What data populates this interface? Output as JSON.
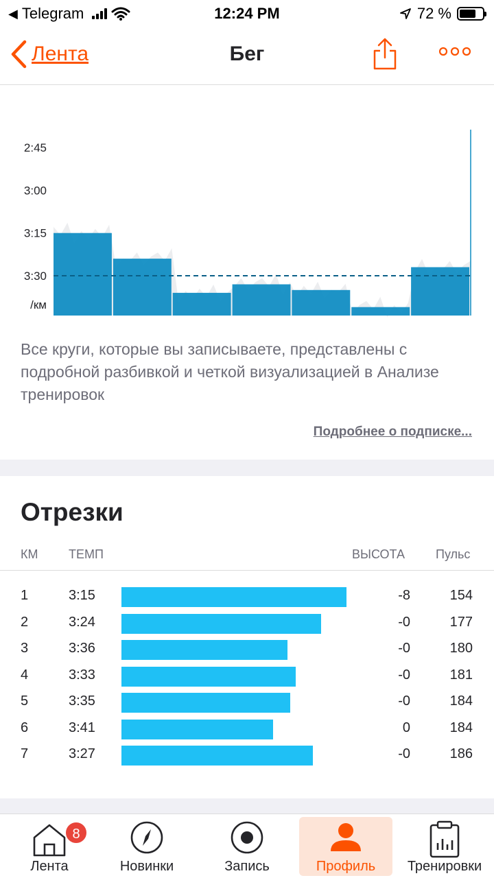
{
  "status_bar": {
    "back_app": "Telegram",
    "time": "12:24 PM",
    "battery": "72 %",
    "battery_level": 0.72
  },
  "nav": {
    "back_label": "Лента",
    "title": "Бег",
    "icons": [
      "chevron-left-icon",
      "share-icon",
      "more-dots-icon"
    ]
  },
  "chart_data": {
    "type": "bar",
    "y_axis_unit": "/км",
    "y_ticks": [
      "2:45",
      "3:00",
      "3:15",
      "3:30"
    ],
    "y_ticks_seconds": [
      165,
      180,
      195,
      210
    ],
    "inverted_axis": true,
    "categories": [
      "1",
      "2",
      "3",
      "4",
      "5",
      "6",
      "7"
    ],
    "values_seconds": [
      195,
      204,
      216,
      213,
      215,
      221,
      207
    ],
    "values": [
      "3:15",
      "3:24",
      "3:36",
      "3:33",
      "3:35",
      "3:41",
      "3:27"
    ],
    "avg_line_seconds": 210,
    "colors": {
      "bar": "#0b8bc2",
      "bar_shadow": "#0574a6",
      "avg_line": "#0a5f87"
    }
  },
  "promo": {
    "description": "Все круги, которые вы записываете, представлены с подробной разбивкой и четкой визуализацией в Анализе тренировок",
    "link": "Подробнее о подписке..."
  },
  "splits": {
    "title": "Отрезки",
    "headers": {
      "km": "КМ",
      "pace": "ТЕМП",
      "elev": "ВЫСОТА",
      "hr": "Пульс"
    },
    "rows": [
      {
        "km": "1",
        "pace": "3:15",
        "pace_sec": 195,
        "elev": "-8",
        "hr": "154"
      },
      {
        "km": "2",
        "pace": "3:24",
        "pace_sec": 204,
        "elev": "-0",
        "hr": "177"
      },
      {
        "km": "3",
        "pace": "3:36",
        "pace_sec": 216,
        "elev": "-0",
        "hr": "180"
      },
      {
        "km": "4",
        "pace": "3:33",
        "pace_sec": 213,
        "elev": "-0",
        "hr": "181"
      },
      {
        "km": "5",
        "pace": "3:35",
        "pace_sec": 215,
        "elev": "-0",
        "hr": "184"
      },
      {
        "km": "6",
        "pace": "3:41",
        "pace_sec": 221,
        "elev": "0",
        "hr": "184"
      },
      {
        "km": "7",
        "pace": "3:27",
        "pace_sec": 207,
        "elev": "-0",
        "hr": "186"
      }
    ],
    "bar_color": "#1fc0f5"
  },
  "tabs": [
    {
      "label": "Лента",
      "icon": "home-icon",
      "badge": "8"
    },
    {
      "label": "Новинки",
      "icon": "compass-icon"
    },
    {
      "label": "Запись",
      "icon": "record-icon"
    },
    {
      "label": "Профиль",
      "icon": "profile-icon",
      "active": true
    },
    {
      "label": "Тренировки",
      "icon": "clipboard-chart-icon"
    }
  ],
  "accent": "#fc5200"
}
